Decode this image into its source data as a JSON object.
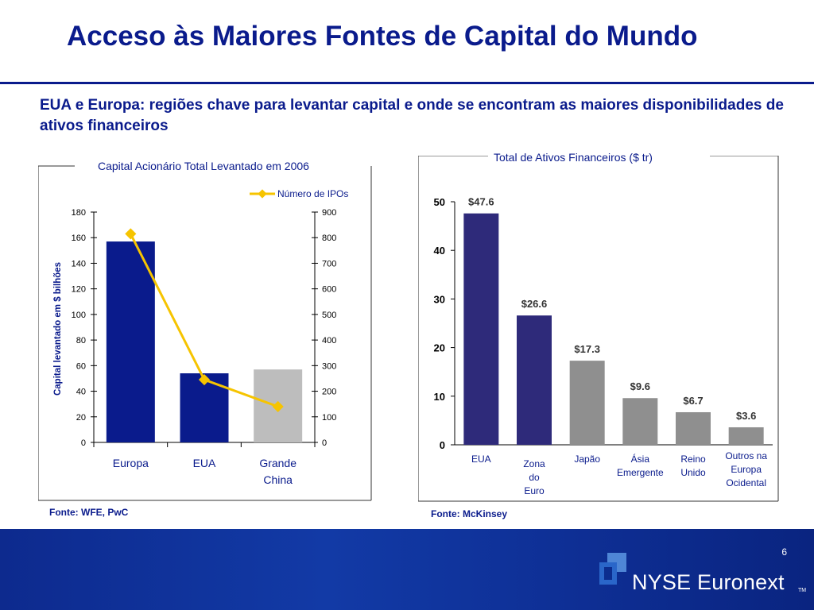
{
  "title": "Acceso às Maiores Fontes de Capital do Mundo",
  "subtitle": "EUA e Europa: regiões chave para levantar capital e onde se encontram as maiores disponibilidades de ativos financeiros",
  "left_source": "Fonte:  WFE, PwC",
  "right_source": "Fonte: McKinsey",
  "page_number": "6",
  "brand": "NYSE Euronext",
  "brand_tm": "TM",
  "colors": {
    "navy": "#0a1b8c",
    "purple": "#2e2a7a",
    "gray_bar": "#8f8f8f",
    "light_gray_bar": "#bdbdbd",
    "line_yellow": "#f6c400"
  },
  "chart_data": [
    {
      "type": "bar",
      "title": "Capital Acionário Total Levantado em 2006",
      "ylabel": "Capital levantado em $ bilhões",
      "categories": [
        "Europa",
        "EUA",
        "Grande China"
      ],
      "values": [
        157,
        54,
        57
      ],
      "bar_colors": [
        "#0a1b8c",
        "#0a1b8c",
        "#bdbdbd"
      ],
      "ylim": [
        0,
        180
      ],
      "yticks": [
        "0",
        "20",
        "40",
        "60",
        "80",
        "100",
        "120",
        "140",
        "160",
        "180"
      ],
      "secondary_axis": {
        "ylim": [
          0,
          900
        ],
        "yticks": [
          "0",
          "100",
          "200",
          "300",
          "400",
          "500",
          "600",
          "700",
          "800",
          "900"
        ]
      },
      "series": [
        {
          "name": "Número de IPOs",
          "type": "line",
          "axis": "secondary",
          "values": [
            815,
            245,
            140
          ]
        }
      ],
      "legend_position": "top-right"
    },
    {
      "type": "bar",
      "title": "Total de Ativos Financeiros ($ tr)",
      "categories": [
        "EUA",
        "Zona do Euro",
        "Japão",
        "Ásia Emergente",
        "Reino Unido",
        "Outros na Europa Ocidental"
      ],
      "values": [
        47.6,
        26.6,
        17.3,
        9.6,
        6.7,
        3.6
      ],
      "data_labels": [
        "$47.6",
        "$26.6",
        "$17.3",
        "$9.6",
        "$6.7",
        "$3.6"
      ],
      "bar_colors": [
        "#2e2a7a",
        "#2e2a7a",
        "#8f8f8f",
        "#8f8f8f",
        "#8f8f8f",
        "#8f8f8f"
      ],
      "ylim": [
        0,
        50
      ],
      "yticks": [
        "0",
        "10",
        "20",
        "30",
        "40",
        "50"
      ]
    }
  ]
}
